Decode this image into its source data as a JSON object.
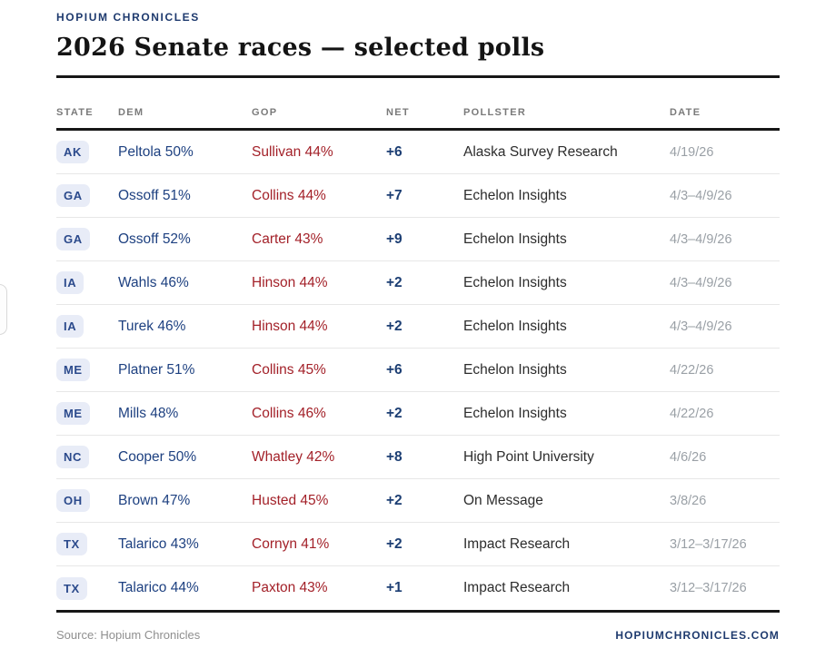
{
  "brand": {
    "eyebrow": "HOPIUM CHRONICLES",
    "title": "2026 Senate races — selected polls"
  },
  "table": {
    "columns": [
      "State",
      "Dem",
      "GOP",
      "Net",
      "Pollster",
      "Date"
    ],
    "rows": [
      {
        "state": "AK",
        "dem": "Peltola 50%",
        "gop": "Sullivan 44%",
        "net": "+6",
        "pollster": "Alaska Survey Research",
        "date": "4/19/26"
      },
      {
        "state": "GA",
        "dem": "Ossoff 51%",
        "gop": "Collins 44%",
        "net": "+7",
        "pollster": "Echelon Insights",
        "date": "4/3–4/9/26"
      },
      {
        "state": "GA",
        "dem": "Ossoff 52%",
        "gop": "Carter 43%",
        "net": "+9",
        "pollster": "Echelon Insights",
        "date": "4/3–4/9/26"
      },
      {
        "state": "IA",
        "dem": "Wahls 46%",
        "gop": "Hinson 44%",
        "net": "+2",
        "pollster": "Echelon Insights",
        "date": "4/3–4/9/26"
      },
      {
        "state": "IA",
        "dem": "Turek 46%",
        "gop": "Hinson 44%",
        "net": "+2",
        "pollster": "Echelon Insights",
        "date": "4/3–4/9/26"
      },
      {
        "state": "ME",
        "dem": "Platner 51%",
        "gop": "Collins 45%",
        "net": "+6",
        "pollster": "Echelon Insights",
        "date": "4/22/26"
      },
      {
        "state": "ME",
        "dem": "Mills 48%",
        "gop": "Collins 46%",
        "net": "+2",
        "pollster": "Echelon Insights",
        "date": "4/22/26"
      },
      {
        "state": "NC",
        "dem": "Cooper 50%",
        "gop": "Whatley 42%",
        "net": "+8",
        "pollster": "High Point University",
        "date": "4/6/26"
      },
      {
        "state": "OH",
        "dem": "Brown 47%",
        "gop": "Husted 45%",
        "net": "+2",
        "pollster": "On Message",
        "date": "3/8/26"
      },
      {
        "state": "TX",
        "dem": "Talarico 43%",
        "gop": "Cornyn 41%",
        "net": "+2",
        "pollster": "Impact Research",
        "date": "3/12–3/17/26"
      },
      {
        "state": "TX",
        "dem": "Talarico 44%",
        "gop": "Paxton 43%",
        "net": "+1",
        "pollster": "Impact Research",
        "date": "3/12–3/17/26"
      }
    ]
  },
  "footer": {
    "source": "Source: Hopium Chronicles",
    "site": "HOPIUMCHRONICLES.COM"
  },
  "colors": {
    "accent_navy": "#1e3a6e",
    "dem_blue": "#1d4080",
    "gop_red": "#a32129",
    "badge_bg": "#e8ecf7",
    "rule_dark": "#161616"
  }
}
